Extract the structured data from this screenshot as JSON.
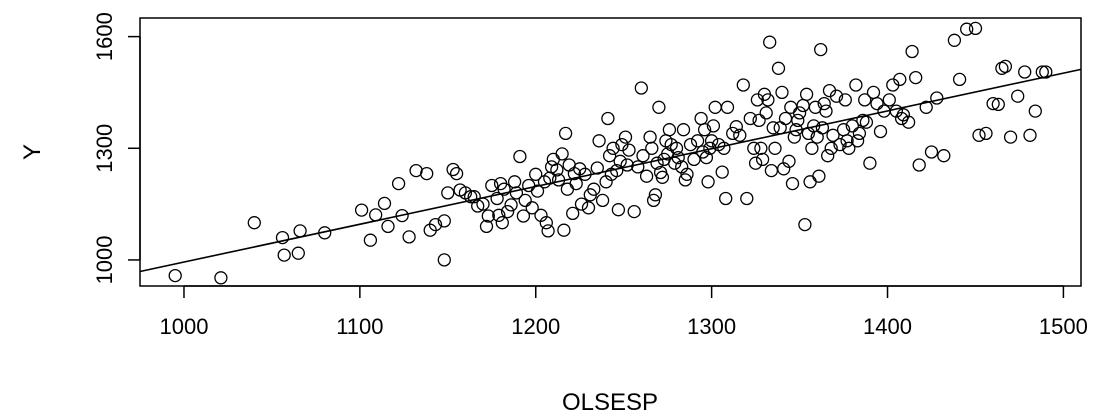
{
  "chart_data": {
    "type": "scatter",
    "title": "",
    "xlabel": "OLSESP",
    "ylabel": "Y",
    "xlim": [
      975,
      1510
    ],
    "ylim": [
      930,
      1650
    ],
    "xticks": [
      1000,
      1100,
      1200,
      1300,
      1400,
      1500
    ],
    "yticks": [
      1000,
      1300,
      1600
    ],
    "xtick_labels": [
      "1000",
      "1100",
      "1200",
      "1300",
      "1400",
      "1500"
    ],
    "ytick_labels": [
      "1000",
      "1300",
      "1600"
    ],
    "grid": false,
    "legend": "none",
    "marker": "open-circle",
    "colors": {
      "marks": "#000000",
      "background": "#ffffff"
    },
    "fit_line": {
      "x": [
        975,
        1510
      ],
      "y": [
        969,
        1512
      ]
    },
    "series": [
      {
        "points": [
          [
            995,
            958
          ],
          [
            1021,
            952
          ],
          [
            1040,
            1100
          ],
          [
            1056,
            1060
          ],
          [
            1057,
            1013
          ],
          [
            1065,
            1018
          ],
          [
            1066,
            1078
          ],
          [
            1080,
            1073
          ],
          [
            1101,
            1134
          ],
          [
            1106,
            1053
          ],
          [
            1109,
            1121
          ],
          [
            1114,
            1152
          ],
          [
            1116,
            1090
          ],
          [
            1122,
            1205
          ],
          [
            1124,
            1119
          ],
          [
            1128,
            1062
          ],
          [
            1132,
            1240
          ],
          [
            1138,
            1232
          ],
          [
            1140,
            1080
          ],
          [
            1143,
            1095
          ],
          [
            1148,
            1000
          ],
          [
            1148,
            1105
          ],
          [
            1150,
            1180
          ],
          [
            1153,
            1243
          ],
          [
            1155,
            1232
          ],
          [
            1157,
            1188
          ],
          [
            1160,
            1180
          ],
          [
            1163,
            1170
          ],
          [
            1165,
            1170
          ],
          [
            1167,
            1145
          ],
          [
            1170,
            1150
          ],
          [
            1172,
            1090
          ],
          [
            1173,
            1118
          ],
          [
            1175,
            1200
          ],
          [
            1178,
            1165
          ],
          [
            1179,
            1120
          ],
          [
            1180,
            1205
          ],
          [
            1181,
            1100
          ],
          [
            1182,
            1190
          ],
          [
            1184,
            1130
          ],
          [
            1186,
            1148
          ],
          [
            1188,
            1210
          ],
          [
            1189,
            1180
          ],
          [
            1191,
            1278
          ],
          [
            1193,
            1118
          ],
          [
            1194,
            1160
          ],
          [
            1196,
            1200
          ],
          [
            1198,
            1140
          ],
          [
            1200,
            1230
          ],
          [
            1201,
            1185
          ],
          [
            1203,
            1120
          ],
          [
            1205,
            1210
          ],
          [
            1206,
            1100
          ],
          [
            1207,
            1078
          ],
          [
            1208,
            1220
          ],
          [
            1209,
            1250
          ],
          [
            1210,
            1270
          ],
          [
            1212,
            1242
          ],
          [
            1213,
            1215
          ],
          [
            1215,
            1285
          ],
          [
            1216,
            1080
          ],
          [
            1217,
            1340
          ],
          [
            1218,
            1190
          ],
          [
            1219,
            1255
          ],
          [
            1221,
            1125
          ],
          [
            1222,
            1232
          ],
          [
            1223,
            1205
          ],
          [
            1225,
            1245
          ],
          [
            1226,
            1150
          ],
          [
            1228,
            1230
          ],
          [
            1230,
            1140
          ],
          [
            1231,
            1175
          ],
          [
            1233,
            1190
          ],
          [
            1235,
            1247
          ],
          [
            1236,
            1320
          ],
          [
            1238,
            1160
          ],
          [
            1240,
            1210
          ],
          [
            1241,
            1380
          ],
          [
            1242,
            1280
          ],
          [
            1243,
            1230
          ],
          [
            1244,
            1300
          ],
          [
            1246,
            1240
          ],
          [
            1247,
            1135
          ],
          [
            1248,
            1265
          ],
          [
            1249,
            1310
          ],
          [
            1251,
            1330
          ],
          [
            1252,
            1255
          ],
          [
            1253,
            1295
          ],
          [
            1256,
            1130
          ],
          [
            1258,
            1250
          ],
          [
            1260,
            1462
          ],
          [
            1261,
            1280
          ],
          [
            1263,
            1225
          ],
          [
            1265,
            1330
          ],
          [
            1266,
            1300
          ],
          [
            1267,
            1160
          ],
          [
            1268,
            1175
          ],
          [
            1269,
            1260
          ],
          [
            1270,
            1410
          ],
          [
            1271,
            1235
          ],
          [
            1272,
            1222
          ],
          [
            1273,
            1270
          ],
          [
            1274,
            1320
          ],
          [
            1275,
            1285
          ],
          [
            1276,
            1350
          ],
          [
            1277,
            1310
          ],
          [
            1279,
            1260
          ],
          [
            1280,
            1300
          ],
          [
            1281,
            1275
          ],
          [
            1283,
            1250
          ],
          [
            1284,
            1350
          ],
          [
            1285,
            1215
          ],
          [
            1286,
            1230
          ],
          [
            1288,
            1310
          ],
          [
            1290,
            1270
          ],
          [
            1292,
            1320
          ],
          [
            1294,
            1380
          ],
          [
            1295,
            1290
          ],
          [
            1296,
            1350
          ],
          [
            1297,
            1275
          ],
          [
            1298,
            1210
          ],
          [
            1299,
            1300
          ],
          [
            1300,
            1320
          ],
          [
            1301,
            1360
          ],
          [
            1302,
            1410
          ],
          [
            1304,
            1310
          ],
          [
            1306,
            1236
          ],
          [
            1307,
            1300
          ],
          [
            1308,
            1165
          ],
          [
            1309,
            1410
          ],
          [
            1312,
            1340
          ],
          [
            1314,
            1358
          ],
          [
            1316,
            1335
          ],
          [
            1318,
            1470
          ],
          [
            1320,
            1165
          ],
          [
            1322,
            1380
          ],
          [
            1324,
            1300
          ],
          [
            1325,
            1260
          ],
          [
            1326,
            1430
          ],
          [
            1327,
            1375
          ],
          [
            1328,
            1300
          ],
          [
            1329,
            1270
          ],
          [
            1330,
            1445
          ],
          [
            1331,
            1395
          ],
          [
            1332,
            1430
          ],
          [
            1333,
            1585
          ],
          [
            1334,
            1240
          ],
          [
            1335,
            1355
          ],
          [
            1336,
            1300
          ],
          [
            1338,
            1515
          ],
          [
            1339,
            1355
          ],
          [
            1340,
            1450
          ],
          [
            1341,
            1245
          ],
          [
            1342,
            1380
          ],
          [
            1344,
            1265
          ],
          [
            1345,
            1410
          ],
          [
            1346,
            1205
          ],
          [
            1347,
            1330
          ],
          [
            1348,
            1350
          ],
          [
            1349,
            1375
          ],
          [
            1350,
            1395
          ],
          [
            1352,
            1415
          ],
          [
            1353,
            1095
          ],
          [
            1354,
            1445
          ],
          [
            1355,
            1340
          ],
          [
            1356,
            1210
          ],
          [
            1357,
            1300
          ],
          [
            1358,
            1360
          ],
          [
            1359,
            1410
          ],
          [
            1360,
            1330
          ],
          [
            1361,
            1225
          ],
          [
            1362,
            1565
          ],
          [
            1363,
            1355
          ],
          [
            1364,
            1420
          ],
          [
            1365,
            1400
          ],
          [
            1366,
            1280
          ],
          [
            1367,
            1455
          ],
          [
            1368,
            1300
          ],
          [
            1369,
            1335
          ],
          [
            1371,
            1440
          ],
          [
            1373,
            1310
          ],
          [
            1375,
            1350
          ],
          [
            1376,
            1430
          ],
          [
            1377,
            1320
          ],
          [
            1378,
            1300
          ],
          [
            1380,
            1360
          ],
          [
            1382,
            1470
          ],
          [
            1383,
            1320
          ],
          [
            1384,
            1340
          ],
          [
            1386,
            1375
          ],
          [
            1387,
            1430
          ],
          [
            1388,
            1370
          ],
          [
            1390,
            1260
          ],
          [
            1392,
            1450
          ],
          [
            1394,
            1420
          ],
          [
            1396,
            1345
          ],
          [
            1398,
            1400
          ],
          [
            1401,
            1430
          ],
          [
            1403,
            1470
          ],
          [
            1405,
            1400
          ],
          [
            1407,
            1485
          ],
          [
            1408,
            1380
          ],
          [
            1409,
            1390
          ],
          [
            1412,
            1370
          ],
          [
            1414,
            1560
          ],
          [
            1416,
            1490
          ],
          [
            1418,
            1255
          ],
          [
            1422,
            1410
          ],
          [
            1425,
            1290
          ],
          [
            1428,
            1435
          ],
          [
            1432,
            1280
          ],
          [
            1438,
            1590
          ],
          [
            1441,
            1485
          ],
          [
            1445,
            1620
          ],
          [
            1450,
            1622
          ],
          [
            1452,
            1335
          ],
          [
            1456,
            1340
          ],
          [
            1460,
            1420
          ],
          [
            1463,
            1418
          ],
          [
            1465,
            1515
          ],
          [
            1467,
            1520
          ],
          [
            1470,
            1330
          ],
          [
            1474,
            1440
          ],
          [
            1478,
            1505
          ],
          [
            1481,
            1335
          ],
          [
            1484,
            1400
          ],
          [
            1488,
            1505
          ],
          [
            1490,
            1505
          ]
        ]
      }
    ]
  }
}
